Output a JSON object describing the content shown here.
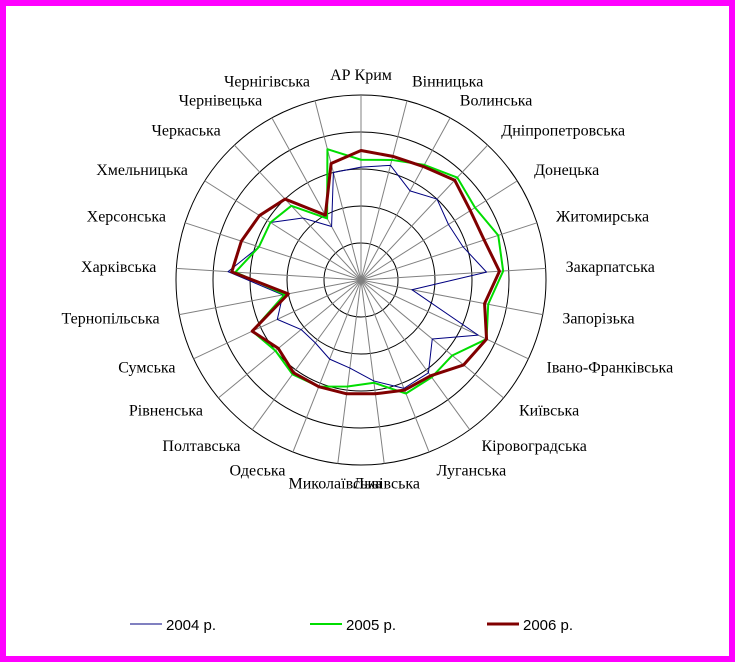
{
  "chart_data": {
    "type": "radar",
    "categories": [
      "АР Крим",
      "Вінницька",
      "Волинська",
      "Дніпропетровська",
      "Донецька",
      "Житомирська",
      "Закарпатська",
      "Запорізька",
      "Івано-Франківська",
      "Київська",
      "Кіровоградська",
      "Луганська",
      "Львівська",
      "Миколаївська",
      "Одеська",
      "Полтавська",
      "Рівненська",
      "Сумська",
      "Тернопільська",
      "Харківська",
      "Херсонська",
      "Хмельницька",
      "Черкаська",
      "Чернівецька",
      "Чернігівська"
    ],
    "series": [
      {
        "name": "2004 р.",
        "color": "#000080",
        "values": [
          0.61,
          0.64,
          0.55,
          0.6,
          0.56,
          0.58,
          0.68,
          0.28,
          0.7,
          0.5,
          0.62,
          0.63,
          0.55,
          0.48,
          0.46,
          0.42,
          0.42,
          0.5,
          0.43,
          0.72,
          0.58,
          0.58,
          0.46,
          0.33,
          0.6
        ]
      },
      {
        "name": "2005 р.",
        "color": "#00dd00",
        "values": [
          0.65,
          0.67,
          0.71,
          0.76,
          0.73,
          0.78,
          0.77,
          0.7,
          0.75,
          0.64,
          0.65,
          0.66,
          0.56,
          0.58,
          0.62,
          0.63,
          0.6,
          0.65,
          0.42,
          0.68,
          0.58,
          0.58,
          0.55,
          0.38,
          0.73
        ]
      },
      {
        "name": "2006 р.",
        "color": "#800000",
        "values": [
          0.7,
          0.69,
          0.7,
          0.74,
          0.7,
          0.7,
          0.75,
          0.68,
          0.75,
          0.72,
          0.64,
          0.64,
          0.62,
          0.62,
          0.62,
          0.62,
          0.58,
          0.65,
          0.4,
          0.7,
          0.68,
          0.65,
          0.6,
          0.4,
          0.65
        ]
      }
    ],
    "grid": true,
    "legend_position": "bottom"
  }
}
